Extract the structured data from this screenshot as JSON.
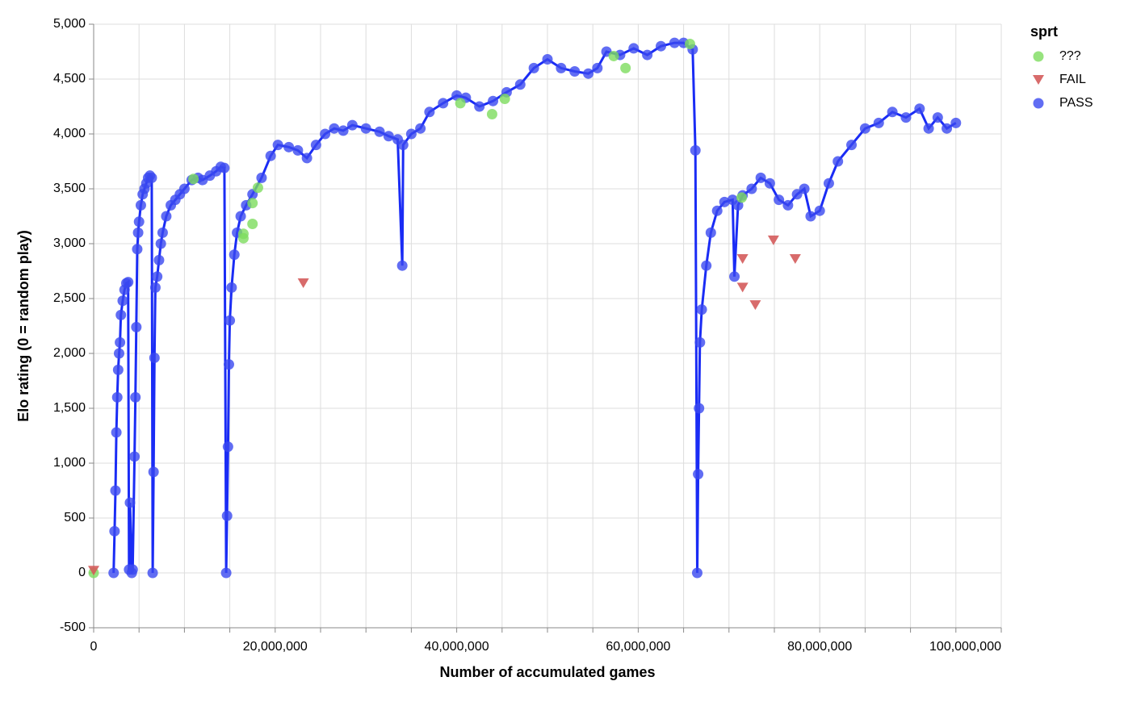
{
  "chart_data": {
    "type": "scatter",
    "x_label": "Number of accumulated games",
    "y_label": "Elo rating (0 = random play)",
    "legend_title": "sprt",
    "legend_position": "right",
    "grid": true,
    "xlim": [
      0,
      100000000
    ],
    "ylim": [
      -500,
      5000
    ],
    "xticks": [
      0,
      {
        "value": 20000000,
        "label": "20,000,000"
      },
      {
        "value": 40000000,
        "label": "40,000,000"
      },
      {
        "value": 60000000,
        "label": "60,000,000"
      },
      {
        "value": 80000000,
        "label": "80,000,000"
      },
      {
        "value": 100000000,
        "label": "100,000,000"
      }
    ],
    "xminorticks": [
      5000000,
      10000000,
      15000000,
      25000000,
      30000000,
      35000000,
      45000000,
      50000000,
      55000000,
      65000000,
      70000000,
      75000000,
      85000000,
      90000000,
      95000000
    ],
    "yticks": [
      {
        "value": -500,
        "label": "-500"
      },
      0,
      500,
      {
        "value": 1000,
        "label": "1,000"
      },
      {
        "value": 1500,
        "label": "1,500"
      },
      {
        "value": 2000,
        "label": "2,000"
      },
      {
        "value": 2500,
        "label": "2,500"
      },
      {
        "value": 3000,
        "label": "3,000"
      },
      {
        "value": 3500,
        "label": "3,500"
      },
      {
        "value": 4000,
        "label": "4,000"
      },
      {
        "value": 4500,
        "label": "4,500"
      },
      {
        "value": 5000,
        "label": "5,000"
      }
    ],
    "series": [
      {
        "name": "???",
        "color": "#7ddc5e",
        "marker": "circle",
        "x": [
          0,
          11000000,
          16500000,
          16500000,
          17500000,
          17500000,
          18100000,
          40400000,
          43900000,
          45300000,
          57300000,
          58600000,
          65700000,
          71400000
        ],
        "values": [
          0,
          3590,
          3090,
          3050,
          3180,
          3370,
          3510,
          4280,
          4180,
          4320,
          4710,
          4600,
          4820,
          3420
        ]
      },
      {
        "name": "FAIL",
        "color": "#d45b5b",
        "marker": "triangle",
        "x": [
          0,
          23100000,
          71500000,
          71500000,
          72900000,
          74900000,
          77300000
        ],
        "values": [
          20,
          2640,
          2860,
          2600,
          2440,
          3030,
          2860
        ]
      },
      {
        "name": "PASS",
        "color": "#3a48f0",
        "line_color": "#1a2cf5",
        "marker": "circle",
        "line": true,
        "x": [
          2200000,
          2300000,
          2400000,
          2500000,
          2600000,
          2700000,
          2800000,
          2900000,
          3000000,
          3200000,
          3400000,
          3600000,
          3800000,
          3900000,
          4000000,
          4200000,
          4300000,
          4500000,
          4600000,
          4700000,
          4800000,
          4900000,
          5000000,
          5200000,
          5400000,
          5600000,
          5800000,
          6000000,
          6200000,
          6400000,
          6500000,
          6600000,
          6700000,
          6800000,
          7000000,
          7200000,
          7400000,
          7600000,
          8000000,
          8500000,
          9000000,
          9500000,
          10000000,
          10800000,
          11500000,
          12000000,
          12800000,
          13500000,
          14000000,
          14400000,
          14600000,
          14700000,
          14800000,
          14900000,
          15000000,
          15200000,
          15500000,
          15800000,
          16200000,
          16800000,
          17500000,
          18500000,
          19500000,
          20300000,
          21500000,
          22500000,
          23500000,
          24500000,
          25500000,
          26500000,
          27500000,
          28500000,
          30000000,
          31500000,
          32500000,
          33500000,
          34000000,
          34100000,
          35000000,
          36000000,
          37000000,
          38500000,
          40000000,
          41000000,
          42500000,
          44000000,
          45500000,
          47000000,
          48500000,
          50000000,
          51500000,
          53000000,
          54500000,
          55500000,
          56500000,
          58000000,
          59500000,
          61000000,
          62500000,
          64000000,
          65000000,
          66000000,
          66300000,
          66500000,
          66600000,
          66700000,
          66800000,
          67000000,
          67500000,
          68000000,
          68700000,
          69500000,
          70400000,
          70600000,
          71000000,
          71500000,
          72500000,
          73500000,
          74500000,
          75500000,
          76500000,
          77500000,
          78300000,
          79000000,
          80000000,
          81000000,
          82000000,
          83500000,
          85000000,
          86500000,
          88000000,
          89500000,
          91000000,
          92000000,
          93000000,
          94000000,
          95000000
        ],
        "values": [
          0,
          380,
          750,
          1280,
          1600,
          1850,
          2000,
          2100,
          2350,
          2480,
          2580,
          2640,
          2650,
          30,
          640,
          0,
          30,
          1060,
          1600,
          2240,
          2950,
          3100,
          3200,
          3350,
          3450,
          3500,
          3550,
          3600,
          3620,
          3600,
          0,
          920,
          1960,
          2600,
          2700,
          2850,
          3000,
          3100,
          3250,
          3350,
          3400,
          3450,
          3500,
          3580,
          3600,
          3580,
          3620,
          3660,
          3700,
          3690,
          0,
          520,
          1150,
          1900,
          2300,
          2600,
          2900,
          3100,
          3250,
          3350,
          3450,
          3600,
          3800,
          3900,
          3880,
          3850,
          3780,
          3900,
          4000,
          4050,
          4030,
          4080,
          4050,
          4020,
          3980,
          3950,
          2800,
          3900,
          4000,
          4050,
          4200,
          4280,
          4350,
          4330,
          4250,
          4300,
          4380,
          4450,
          4600,
          4680,
          4600,
          4570,
          4550,
          4600,
          4750,
          4720,
          4780,
          4720,
          4800,
          4830,
          4830,
          4770,
          3850,
          0,
          900,
          1500,
          2100,
          2400,
          2800,
          3100,
          3300,
          3380,
          3400,
          2700,
          3350,
          3440,
          3500,
          3600,
          3550,
          3400,
          3350,
          3450,
          3500,
          3250,
          3300,
          3550,
          3750,
          3900,
          4050,
          4100,
          4200,
          4150,
          4230,
          4050,
          4150,
          4050,
          4100
        ]
      }
    ]
  }
}
